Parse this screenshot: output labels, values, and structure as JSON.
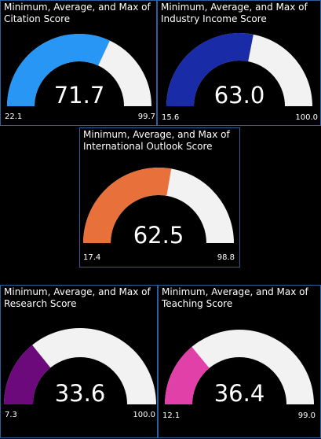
{
  "chart_data": [
    {
      "type": "gauge",
      "title": "Minimum, Average, and Max of Citation Score",
      "min": 22.1,
      "value": 71.7,
      "max": 99.7,
      "min_label": "22.1",
      "value_label": "71.7",
      "max_label": "99.7",
      "fill_color": "#2896f5",
      "track_color": "#f2f2f2"
    },
    {
      "type": "gauge",
      "title": "Minimum, Average, and Max of Industry Income Score",
      "min": 15.6,
      "value": 63.0,
      "max": 100.0,
      "min_label": "15.6",
      "value_label": "63.0",
      "max_label": "100.0",
      "fill_color": "#1a2ba8",
      "track_color": "#f2f2f2"
    },
    {
      "type": "gauge",
      "title": "Minimum, Average, and Max of International Outlook Score",
      "min": 17.4,
      "value": 62.5,
      "max": 98.8,
      "min_label": "17.4",
      "value_label": "62.5",
      "max_label": "98.8",
      "fill_color": "#e8703a",
      "track_color": "#f2f2f2"
    },
    {
      "type": "gauge",
      "title": "Minimum, Average, and Max of Research Score",
      "min": 7.3,
      "value": 33.6,
      "max": 100.0,
      "min_label": "7.3",
      "value_label": "33.6",
      "max_label": "100.0",
      "fill_color": "#6c0a7c",
      "track_color": "#f2f2f2"
    },
    {
      "type": "gauge",
      "title": "Minimum, Average, and Max of Teaching Score",
      "min": 12.1,
      "value": 36.4,
      "max": 99.0,
      "min_label": "12.1",
      "value_label": "36.4",
      "max_label": "99.0",
      "fill_color": "#e040a8",
      "track_color": "#f2f2f2"
    }
  ]
}
